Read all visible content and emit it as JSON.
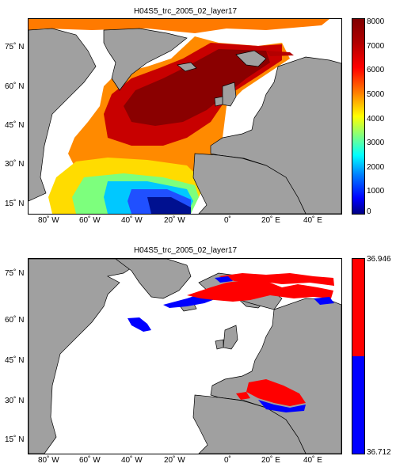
{
  "panel_top": {
    "title": "H04S5_trc_2005_02_layer17",
    "lat_labels": [
      "75˚ N",
      "60˚ N",
      "45˚ N",
      "30˚ N",
      "15˚ N"
    ],
    "lon_labels": [
      "80˚ W",
      "60˚ W",
      "40˚ W",
      "20˚ W",
      "0˚",
      "20˚ E",
      "40˚ E"
    ],
    "colorbar_ticks": [
      "8000",
      "7000",
      "6000",
      "5000",
      "4000",
      "3000",
      "2000",
      "1000",
      "0"
    ],
    "colormap": "jet",
    "range": [
      0,
      8000
    ]
  },
  "panel_bottom": {
    "title": "H04S5_trc_2005_02_layer17",
    "lat_labels": [
      "75˚ N",
      "60˚ N",
      "45˚ N",
      "30˚ N",
      "15˚ N"
    ],
    "lon_labels": [
      "80˚ W",
      "60˚ W",
      "40˚ W",
      "20˚ W",
      "0˚",
      "20˚ E",
      "40˚ E"
    ],
    "colorbar_max": "36.946",
    "colorbar_min": "36.712",
    "colors": {
      "high": "#ff0000",
      "low": "#0000ff"
    }
  },
  "colors": {
    "land": "#a0a0a0",
    "sea_background": "#ffffff"
  }
}
